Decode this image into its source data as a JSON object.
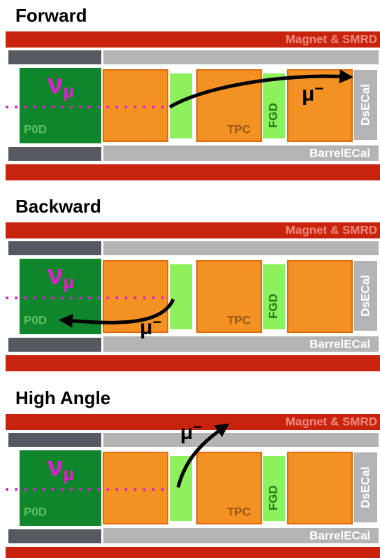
{
  "panels": [
    {
      "title": "Forward",
      "magnet": "Magnet & SMRD",
      "barrel": "BarrelECal",
      "ds": "DsECal",
      "p0d": "P0D",
      "tpc": "TPC",
      "fgd": "FGD",
      "neutrino": {
        "symbol": "ν",
        "subscript": "μ"
      },
      "muon": {
        "symbol": "μ",
        "superscript": "−"
      }
    },
    {
      "title": "Backward",
      "magnet": "Magnet & SMRD",
      "barrel": "BarrelECal",
      "ds": "DsECal",
      "p0d": "P0D",
      "tpc": "TPC",
      "fgd": "FGD",
      "neutrino": {
        "symbol": "ν",
        "subscript": "μ"
      },
      "muon": {
        "symbol": "μ",
        "superscript": "−"
      }
    },
    {
      "title": "High Angle",
      "magnet": "Magnet & SMRD",
      "barrel": "BarrelECal",
      "ds": "DsECal",
      "p0d": "P0D",
      "tpc": "TPC",
      "fgd": "FGD",
      "neutrino": {
        "symbol": "ν",
        "subscript": "μ"
      },
      "muon": {
        "symbol": "μ",
        "superscript": "−"
      }
    }
  ]
}
